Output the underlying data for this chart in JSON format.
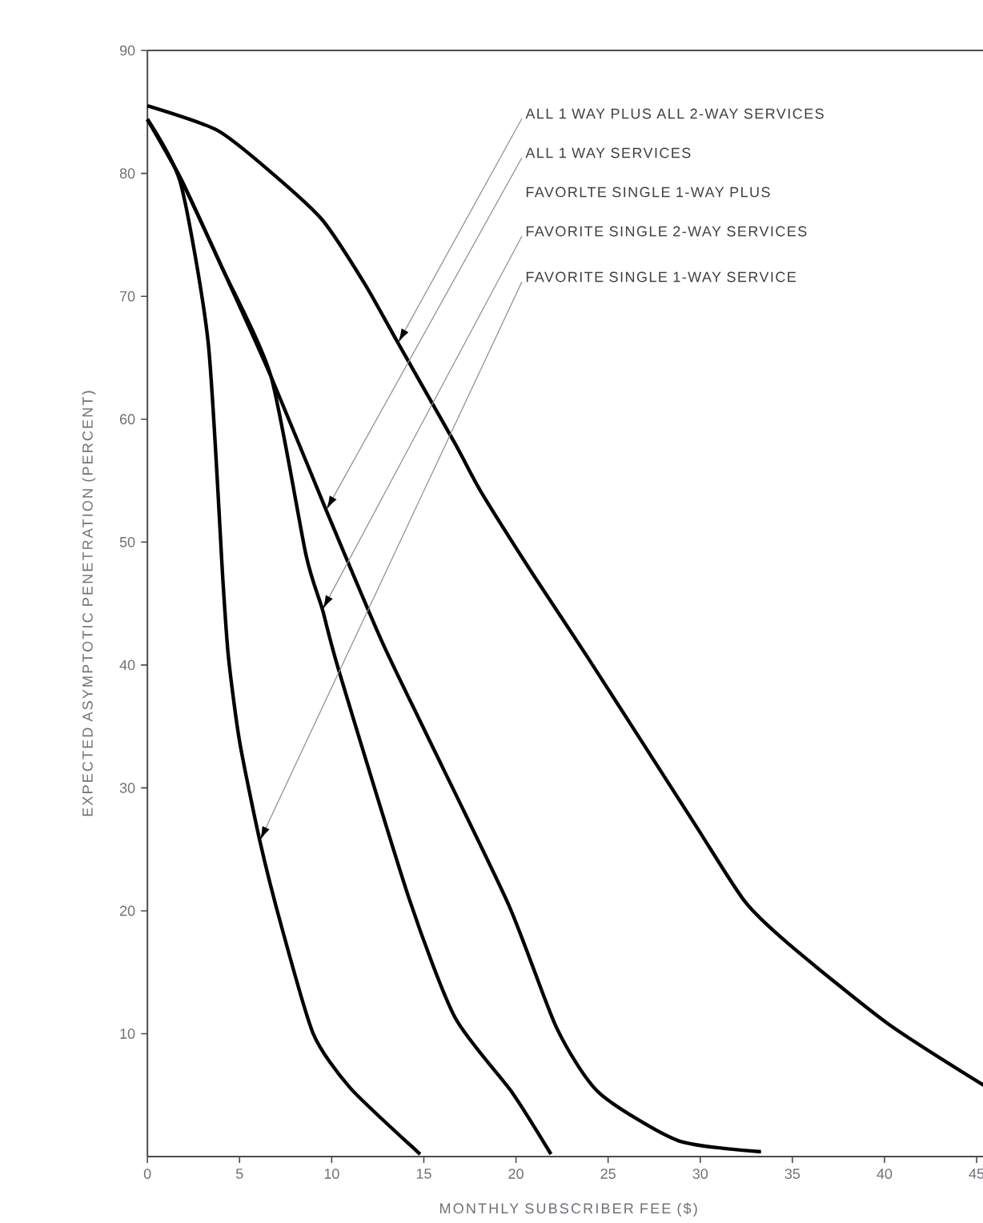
{
  "chart_data": {
    "type": "line",
    "xlabel": "MONTHLY SUBSCRIBER FEE ($)",
    "ylabel": "EXPECTED ASYMPTOTIC PENETRATION (PERCENT)",
    "xlim": [
      0,
      45.7
    ],
    "ylim": [
      0,
      90
    ],
    "xticks": [
      0,
      5,
      10,
      15,
      20,
      25,
      30,
      35,
      40,
      45
    ],
    "yticks": [
      10,
      20,
      30,
      40,
      50,
      60,
      70,
      80,
      90
    ],
    "marker": "none",
    "line_style": "solid",
    "series": [
      {
        "color": "#000000",
        "x": [
          0,
          3.8,
          6.7,
          9.5,
          11.8,
          13.6,
          16.7,
          18.1,
          21,
          23.9,
          29.6,
          32.4,
          34.8,
          40.2,
          45.6
        ],
        "values": [
          85.5,
          83.5,
          80.1,
          76.2,
          71,
          66.2,
          58,
          54.1,
          47.2,
          40.6,
          27.3,
          20.8,
          17.3,
          10.8,
          5.6
        ]
      },
      {
        "color": "#000000",
        "x": [
          0,
          1.8,
          4,
          6.7,
          9.7,
          12.7,
          15.1,
          19.6,
          22.2,
          24.5,
          28.8,
          33.3
        ],
        "values": [
          84.4,
          79.6,
          72.5,
          63.5,
          52.6,
          42,
          34.5,
          20.5,
          10.5,
          5.2,
          1.3,
          0.4
        ]
      },
      {
        "color": "#000000",
        "x": [
          0,
          1.8,
          4,
          6.7,
          8.6,
          9.5,
          10.4,
          14.2,
          16.7,
          19.8,
          21.9
        ],
        "values": [
          84.4,
          79.6,
          72.5,
          63.5,
          49,
          44.5,
          39.5,
          21,
          11.3,
          5.2,
          0.2
        ]
      },
      {
        "color": "#000000",
        "x": [
          0,
          1.8,
          3.3,
          4.1,
          4.4,
          5,
          6.1,
          7.3,
          9,
          11,
          14.8
        ],
        "values": [
          84.4,
          79.2,
          66.2,
          46.8,
          40.6,
          33.8,
          25.7,
          18.6,
          10,
          5.6,
          0.2
        ]
      }
    ],
    "annotations": [
      {
        "text": "ALL 1 WAY PLUS ALL 2-WAY SERVICES",
        "x": 13.6,
        "y": 66.2
      },
      {
        "text": "ALL 1 WAY SERVICES",
        "x": 9.7,
        "y": 52.6
      },
      "FAVORLTE SINGLE 1-WAY PLUS",
      {
        "text": "FAVORITE SINGLE 2-WAY SERVICES",
        "x": 9.5,
        "y": 44.5
      },
      {
        "text": "FAVORITE SINGLE 1-WAY SERVICE",
        "x": 6.1,
        "y": 25.7
      }
    ]
  }
}
